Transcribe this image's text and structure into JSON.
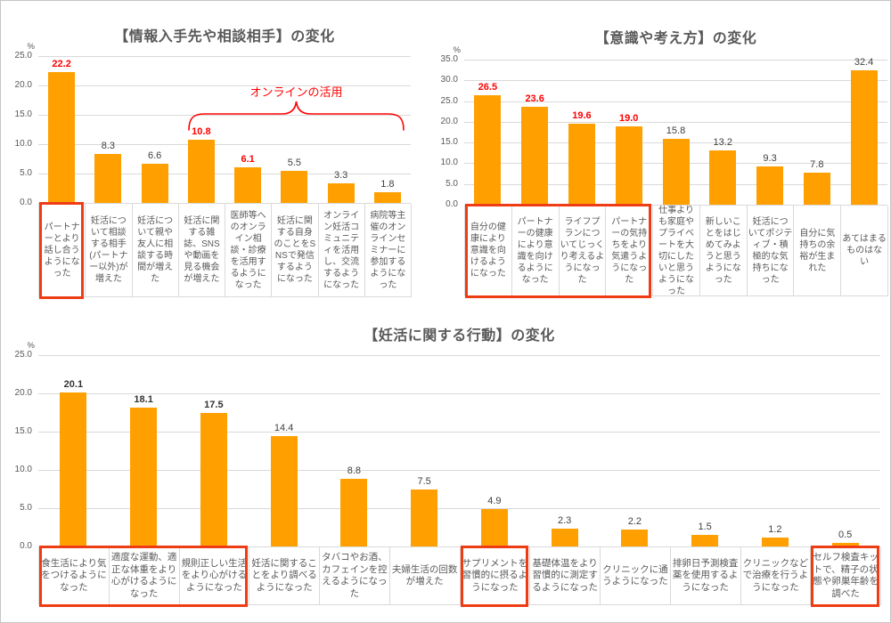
{
  "page": {
    "background": "#ffffff",
    "border_color": "#c6c6c6"
  },
  "colors": {
    "bar": "#FFA000",
    "red_accent": "#FF0000",
    "highlight_box": "#EE3C14",
    "title_text": "#595959",
    "axis_text": "#595959",
    "value_text": "#404040",
    "gridline": "#D9D9D9"
  },
  "chart_data": [
    {
      "type": "bar",
      "title": "【情報入手先や相談相手】の変化",
      "unit": "%",
      "ylim": [
        0,
        25
      ],
      "ytick_step": 5,
      "grid": true,
      "legend": "none",
      "categories": [
        "パートナーとより話し合うようになった",
        "妊活について相談する相手(パートナー以外)が増えた",
        "妊活について親や友人に相談する時間が増えた",
        "妊活に関する雑誌、SNSや動画を見る機会が増えた",
        "医師等へのオンライン相談・診療を活用するようになった",
        "妊活に関する自身のことをSNSで発信するようになった",
        "オンライン妊活コミュニティを活用し、交流するようになった",
        "病院等主催のオンラインセミナーに参加するようになった"
      ],
      "values": [
        22.2,
        8.3,
        6.6,
        10.8,
        6.1,
        5.5,
        3.3,
        1.8
      ],
      "red_value_indices": [
        0,
        3,
        4
      ],
      "bold_value_indices": [],
      "highlight_boxes": [
        [
          0,
          0
        ]
      ],
      "annotation": {
        "label": "オンラインの活用",
        "span": [
          3,
          7
        ]
      }
    },
    {
      "type": "bar",
      "title": "【意識や考え方】の変化",
      "unit": "%",
      "ylim": [
        0,
        35
      ],
      "ytick_step": 5,
      "grid": true,
      "legend": "none",
      "categories": [
        "自分の健康により意識を向けるようになった",
        "パートナーの健康により意識を向けるようになった",
        "ライフプランについてじっくり考えるようになった",
        "パートナーの気持ちをより気遣うようになった",
        "仕事よりも家庭やプライベートを大切にしたいと思うようになった",
        "新しいことをはじめてみようと思うようになった",
        "妊活についてポジティブ・積極的な気持ちになった",
        "自分に気持ちの余裕が生まれた",
        "あてはまるものはない"
      ],
      "values": [
        26.5,
        23.6,
        19.6,
        19.0,
        15.8,
        13.2,
        9.3,
        7.8,
        32.4
      ],
      "red_value_indices": [
        0,
        1,
        2,
        3
      ],
      "bold_value_indices": [],
      "highlight_boxes": [
        [
          0,
          3
        ]
      ]
    },
    {
      "type": "bar",
      "title": "【妊活に関する行動】の変化",
      "unit": "%",
      "ylim": [
        0,
        25
      ],
      "ytick_step": 5,
      "grid": true,
      "legend": "none",
      "categories": [
        "食生活により気をつけるようになった",
        "適度な運動、適正な体重をより心がけるようになった",
        "規則正しい生活をより心がけるようになった",
        "妊活に関することをより調べるようになった",
        "タバコやお酒、カフェインを控えるようになった",
        "夫婦生活の回数が増えた",
        "サプリメントを習慣的に摂るようになった",
        "基礎体温をより習慣的に測定するようになった",
        "クリニックに通うようになった",
        "排卵日予測検査薬を使用するようになった",
        "クリニックなどで治療を行うようになった",
        "セルフ検査キットで、精子の状態や卵巣年齢を調べた"
      ],
      "values": [
        20.1,
        18.1,
        17.5,
        14.4,
        8.8,
        7.5,
        4.9,
        2.3,
        2.2,
        1.5,
        1.2,
        0.5
      ],
      "red_value_indices": [],
      "bold_value_indices": [
        0,
        1,
        2
      ],
      "highlight_boxes": [
        [
          0,
          2
        ],
        [
          6,
          6
        ],
        [
          11,
          11
        ]
      ]
    }
  ]
}
